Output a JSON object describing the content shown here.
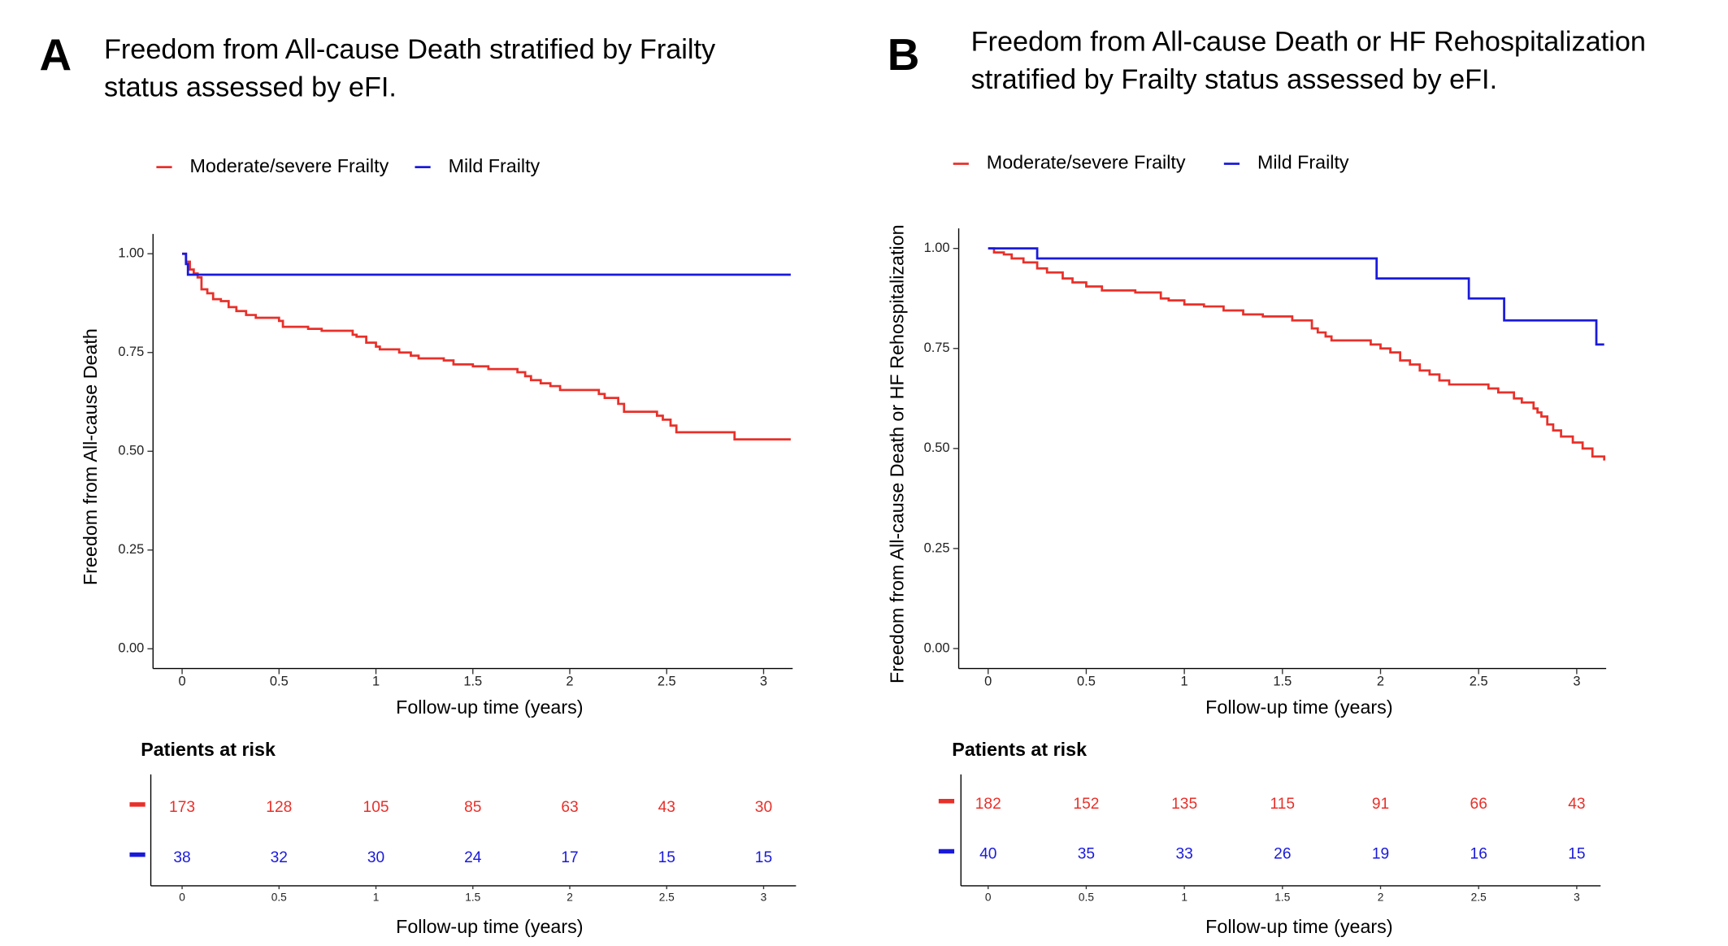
{
  "chart_data": [
    {
      "type": "step",
      "panel": "A",
      "title": [
        "Freedom from All-cause Death stratified by Frailty",
        "status assessed by eFI."
      ],
      "xlabel": "Follow-up time (years)",
      "ylabel": "Freedom from All-cause Death",
      "xlim": [
        -0.15,
        3.15
      ],
      "ylim": [
        -0.05,
        1.05
      ],
      "xticks": [
        0,
        0.5,
        1,
        1.5,
        2,
        2.5,
        3
      ],
      "yticks": [
        {
          "value": 0,
          "label": "0.00"
        },
        {
          "value": 0.25,
          "label": "0.25"
        },
        {
          "value": 0.5,
          "label": "0.50"
        },
        {
          "value": 0.75,
          "label": "0.75"
        },
        {
          "value": 1,
          "label": "1.00"
        }
      ],
      "series": [
        {
          "name": "Moderate/severe Frailty",
          "color": "#e8302a",
          "x": [
            0,
            0.02,
            0.04,
            0.06,
            0.08,
            0.1,
            0.13,
            0.16,
            0.2,
            0.24,
            0.28,
            0.33,
            0.38,
            0.5,
            0.52,
            0.65,
            0.72,
            0.88,
            0.9,
            0.95,
            1.0,
            1.02,
            1.12,
            1.18,
            1.22,
            1.35,
            1.4,
            1.5,
            1.58,
            1.73,
            1.77,
            1.8,
            1.85,
            1.9,
            1.95,
            2.15,
            2.18,
            2.25,
            2.28,
            2.45,
            2.48,
            2.52,
            2.55,
            2.85,
            3.14
          ],
          "values": [
            1.0,
            0.98,
            0.96,
            0.95,
            0.94,
            0.91,
            0.9,
            0.885,
            0.88,
            0.865,
            0.855,
            0.845,
            0.838,
            0.83,
            0.815,
            0.81,
            0.805,
            0.795,
            0.79,
            0.775,
            0.765,
            0.758,
            0.75,
            0.742,
            0.735,
            0.73,
            0.72,
            0.715,
            0.708,
            0.7,
            0.69,
            0.68,
            0.672,
            0.665,
            0.655,
            0.645,
            0.635,
            0.62,
            0.6,
            0.59,
            0.58,
            0.565,
            0.548,
            0.53,
            0.53
          ]
        },
        {
          "name": "Mild Frailty",
          "color": "#1a1adb",
          "x": [
            0,
            0.02,
            0.03,
            3.14
          ],
          "values": [
            1.0,
            0.974,
            0.947,
            0.947
          ]
        }
      ],
      "risk_table": {
        "title": "Patients at risk",
        "xlabel": "Follow-up time (years)",
        "xticks": [
          0,
          0.5,
          1,
          1.5,
          2,
          2.5,
          3
        ],
        "rows": [
          [
            173,
            128,
            105,
            85,
            63,
            43,
            30
          ],
          [
            38,
            32,
            30,
            24,
            17,
            15,
            15
          ]
        ]
      }
    },
    {
      "type": "step",
      "panel": "B",
      "title": [
        "Freedom from All-cause Death or HF Rehospitalization",
        "stratified by Frailty status assessed by eFI."
      ],
      "xlabel": "Follow-up time (years)",
      "ylabel": "Freedom from All-cause Death or HF Rehospitalization",
      "xlim": [
        -0.15,
        3.15
      ],
      "ylim": [
        -0.05,
        1.05
      ],
      "xticks": [
        0,
        0.5,
        1,
        1.5,
        2,
        2.5,
        3
      ],
      "yticks": [
        {
          "value": 0,
          "label": "0.00"
        },
        {
          "value": 0.25,
          "label": "0.25"
        },
        {
          "value": 0.5,
          "label": "0.50"
        },
        {
          "value": 0.75,
          "label": "0.75"
        },
        {
          "value": 1,
          "label": "1.00"
        }
      ],
      "series": [
        {
          "name": "Moderate/severe Frailty",
          "color": "#e8302a",
          "x": [
            0,
            0.03,
            0.08,
            0.12,
            0.18,
            0.25,
            0.3,
            0.38,
            0.43,
            0.5,
            0.58,
            0.75,
            0.88,
            0.92,
            1.0,
            1.1,
            1.2,
            1.3,
            1.4,
            1.55,
            1.65,
            1.68,
            1.72,
            1.75,
            1.95,
            2.0,
            2.05,
            2.1,
            2.15,
            2.2,
            2.25,
            2.3,
            2.35,
            2.55,
            2.6,
            2.68,
            2.72,
            2.78,
            2.8,
            2.82,
            2.85,
            2.88,
            2.92,
            2.98,
            3.03,
            3.08,
            3.14
          ],
          "values": [
            1.0,
            0.99,
            0.985,
            0.975,
            0.965,
            0.95,
            0.94,
            0.925,
            0.915,
            0.905,
            0.895,
            0.89,
            0.875,
            0.87,
            0.86,
            0.855,
            0.845,
            0.835,
            0.83,
            0.82,
            0.8,
            0.79,
            0.78,
            0.77,
            0.76,
            0.75,
            0.74,
            0.72,
            0.71,
            0.695,
            0.685,
            0.67,
            0.66,
            0.65,
            0.64,
            0.625,
            0.615,
            0.6,
            0.59,
            0.58,
            0.56,
            0.545,
            0.53,
            0.515,
            0.5,
            0.48,
            0.47
          ]
        },
        {
          "name": "Mild Frailty",
          "color": "#1a1adb",
          "x": [
            0,
            0.25,
            1.98,
            2.45,
            2.63,
            3.1,
            3.14
          ],
          "values": [
            1.0,
            0.975,
            0.925,
            0.875,
            0.82,
            0.76,
            0.76
          ]
        }
      ],
      "risk_table": {
        "title": "Patients at risk",
        "xlabel": "Follow-up time (years)",
        "xticks": [
          0,
          0.5,
          1,
          1.5,
          2,
          2.5,
          3
        ],
        "rows": [
          [
            182,
            152,
            135,
            115,
            91,
            66,
            43
          ],
          [
            40,
            35,
            33,
            26,
            19,
            16,
            15
          ]
        ]
      }
    }
  ]
}
